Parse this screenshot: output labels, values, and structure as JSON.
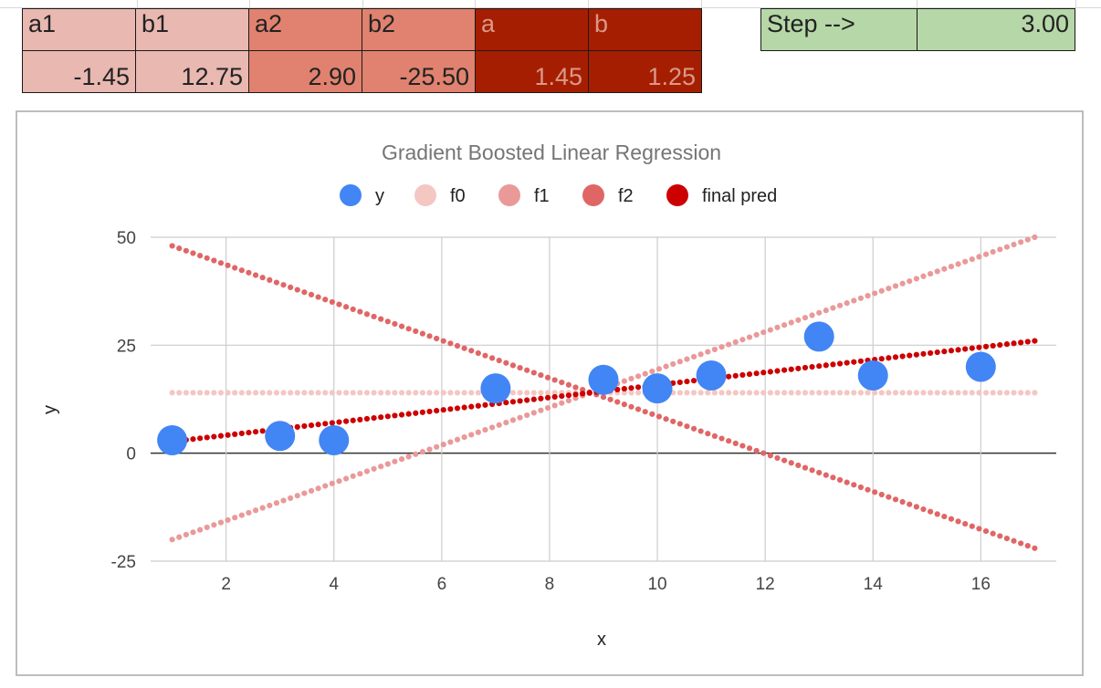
{
  "sheet": {
    "params": [
      {
        "header": "a1",
        "value": "-1.45",
        "tone": "light"
      },
      {
        "header": "b1",
        "value": "12.75",
        "tone": "light"
      },
      {
        "header": "a2",
        "value": "2.90",
        "tone": "mid"
      },
      {
        "header": "b2",
        "value": "-25.50",
        "tone": "mid"
      },
      {
        "header": "a",
        "value": "1.45",
        "tone": "dark"
      },
      {
        "header": "b",
        "value": "1.25",
        "tone": "dark"
      }
    ],
    "step": {
      "label": "Step -->",
      "value": "3.00"
    },
    "colors": {
      "light": "#e8b8b1",
      "mid": "#e0826f",
      "dark": "#a61e01",
      "step": "#b6d7a8"
    }
  },
  "chart_data": {
    "type": "scatter",
    "title": "Gradient Boosted Linear Regression",
    "xlabel": "x",
    "ylabel": "y",
    "xlim": [
      0.6,
      17.4
    ],
    "ylim": [
      -25,
      50
    ],
    "xticks": [
      "2",
      "4",
      "6",
      "8",
      "10",
      "12",
      "14",
      "16"
    ],
    "yticks": [
      "-25",
      "0",
      "25",
      "50"
    ],
    "grid": true,
    "legend_position": "top",
    "series": [
      {
        "name": "y",
        "style": "markers",
        "color": "#4285f4",
        "x": [
          1,
          3,
          4,
          7,
          9,
          10,
          11,
          13,
          14,
          16
        ],
        "y": [
          3,
          4,
          3,
          15,
          17,
          15,
          18,
          27,
          18,
          20
        ]
      },
      {
        "name": "f0",
        "style": "dotted-line",
        "color": "#f4c7c3",
        "x": [
          1,
          17
        ],
        "y": [
          14,
          14
        ]
      },
      {
        "name": "f1",
        "style": "dotted-line",
        "color": "#ea9999",
        "x": [
          1,
          17
        ],
        "y": [
          -20,
          50
        ]
      },
      {
        "name": "f2",
        "style": "dotted-line",
        "color": "#e06666",
        "x": [
          1,
          17
        ],
        "y": [
          48,
          -22
        ]
      },
      {
        "name": "final pred",
        "style": "dotted-line",
        "color": "#cc0000",
        "x": [
          1,
          17
        ],
        "y": [
          2.7,
          26
        ]
      }
    ]
  }
}
